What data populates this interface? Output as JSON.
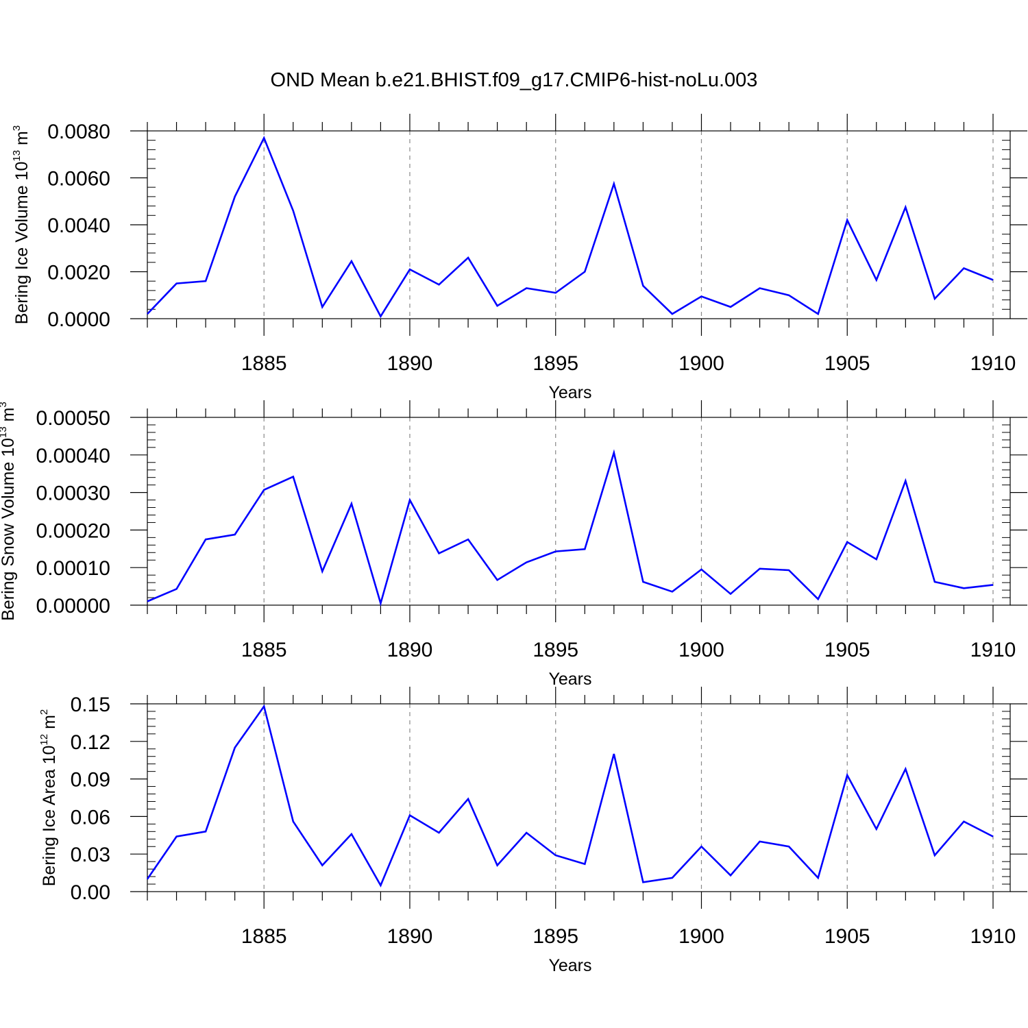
{
  "title": "OND Mean b.e21.BHIST.f09_g17.CMIP6-hist-noLu.003",
  "line_color": "#0000ff",
  "chart_data": [
    {
      "type": "line",
      "ylabel": {
        "base": "Bering Ice Volume 10",
        "exp": "13",
        "unit": " m",
        "unit_exp": "3"
      },
      "xlabel": "Years",
      "xlim": [
        1881,
        1910
      ],
      "ylim": [
        0,
        0.008
      ],
      "yticks": [
        0,
        0.002,
        0.004,
        0.006,
        0.008
      ],
      "ytick_labels": [
        "0.0000",
        "0.0020",
        "0.0040",
        "0.0060",
        "0.0080"
      ],
      "xticks": [
        1885,
        1890,
        1895,
        1900,
        1905,
        1910
      ],
      "xtick_labels": [
        "1885",
        "1890",
        "1895",
        "1900",
        "1905",
        "1910"
      ],
      "x": [
        1881,
        1882,
        1883,
        1884,
        1885,
        1886,
        1887,
        1888,
        1889,
        1890,
        1891,
        1892,
        1893,
        1894,
        1895,
        1896,
        1897,
        1898,
        1899,
        1900,
        1901,
        1902,
        1903,
        1904,
        1905,
        1906,
        1907,
        1908,
        1909,
        1910
      ],
      "values": [
        0.0002,
        0.0015,
        0.0016,
        0.0052,
        0.0077,
        0.0046,
        0.0005,
        0.00245,
        0.0001,
        0.0021,
        0.00145,
        0.0026,
        0.00055,
        0.0013,
        0.0011,
        0.002,
        0.00575,
        0.0014,
        0.0002,
        0.00095,
        0.0005,
        0.0013,
        0.001,
        0.0002,
        0.0042,
        0.00165,
        0.00475,
        0.00085,
        0.00215,
        0.00165
      ]
    },
    {
      "type": "line",
      "ylabel": {
        "base": "Bering Snow Volume 10",
        "exp": "13",
        "unit": " m",
        "unit_exp": "3"
      },
      "xlabel": "Years",
      "xlim": [
        1881,
        1910
      ],
      "ylim": [
        0,
        0.0005
      ],
      "yticks": [
        0,
        0.0001,
        0.0002,
        0.0003,
        0.0004,
        0.0005
      ],
      "ytick_labels": [
        "0.00000",
        "0.00010",
        "0.00020",
        "0.00030",
        "0.00040",
        "0.00050"
      ],
      "xticks": [
        1885,
        1890,
        1895,
        1900,
        1905,
        1910
      ],
      "xtick_labels": [
        "1885",
        "1890",
        "1895",
        "1900",
        "1905",
        "1910"
      ],
      "x": [
        1881,
        1882,
        1883,
        1884,
        1885,
        1886,
        1887,
        1888,
        1889,
        1890,
        1891,
        1892,
        1893,
        1894,
        1895,
        1896,
        1897,
        1898,
        1899,
        1900,
        1901,
        1902,
        1903,
        1904,
        1905,
        1906,
        1907,
        1908,
        1909,
        1910
      ],
      "values": [
        1e-05,
        4.3e-05,
        0.000175,
        0.000188,
        0.000307,
        0.000342,
        9e-05,
        0.00027,
        5e-06,
        0.00028,
        0.000138,
        0.000175,
        6.7e-05,
        0.000114,
        0.000143,
        0.000149,
        0.000406,
        6.2e-05,
        3.6e-05,
        9.5e-05,
        3e-05,
        9.7e-05,
        9.3e-05,
        1.6e-05,
        0.000168,
        0.000122,
        0.000331,
        6.2e-05,
        4.5e-05,
        5.4e-05
      ]
    },
    {
      "type": "line",
      "ylabel": {
        "base": "Bering Ice Area 10",
        "exp": "12",
        "unit": " m",
        "unit_exp": "2"
      },
      "xlabel": "Years",
      "xlim": [
        1881,
        1910
      ],
      "ylim": [
        0,
        0.15
      ],
      "yticks": [
        0,
        0.03,
        0.06,
        0.09,
        0.12,
        0.15
      ],
      "ytick_labels": [
        "0.00",
        "0.03",
        "0.06",
        "0.09",
        "0.12",
        "0.15"
      ],
      "xticks": [
        1885,
        1890,
        1895,
        1900,
        1905,
        1910
      ],
      "xtick_labels": [
        "1885",
        "1890",
        "1895",
        "1900",
        "1905",
        "1910"
      ],
      "x": [
        1881,
        1882,
        1883,
        1884,
        1885,
        1886,
        1887,
        1888,
        1889,
        1890,
        1891,
        1892,
        1893,
        1894,
        1895,
        1896,
        1897,
        1898,
        1899,
        1900,
        1901,
        1902,
        1903,
        1904,
        1905,
        1906,
        1907,
        1908,
        1909,
        1910
      ],
      "values": [
        0.01,
        0.044,
        0.048,
        0.115,
        0.148,
        0.056,
        0.021,
        0.046,
        0.005,
        0.061,
        0.047,
        0.074,
        0.021,
        0.047,
        0.029,
        0.022,
        0.11,
        0.0075,
        0.011,
        0.036,
        0.013,
        0.04,
        0.036,
        0.011,
        0.093,
        0.05,
        0.098,
        0.029,
        0.056,
        0.044
      ]
    }
  ]
}
